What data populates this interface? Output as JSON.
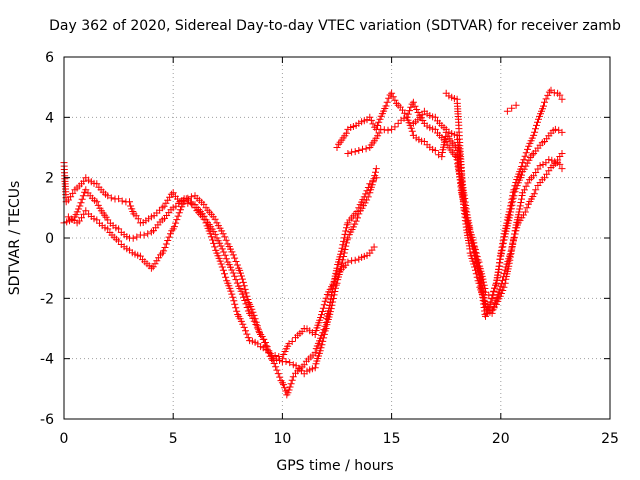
{
  "chart_data": {
    "type": "scatter",
    "title": "Day 362 of 2020, Sidereal Day-to-day VTEC variation (SDTVAR) for receiver zamb",
    "xlabel": "GPS time / hours",
    "ylabel": "SDTVAR / TECUs",
    "xlim": [
      0,
      25
    ],
    "ylim": [
      -6,
      6
    ],
    "xticks": [
      0,
      5,
      10,
      15,
      20,
      25
    ],
    "yticks": [
      -6,
      -4,
      -2,
      0,
      2,
      4,
      6
    ],
    "grid": true,
    "marker": "+",
    "color": "#ff0000",
    "series": [
      {
        "x": [
          0.0,
          0.1,
          0.5,
          1.0,
          1.5,
          2.0,
          2.5,
          3.0,
          3.2,
          3.5,
          4.0,
          4.5,
          5.0,
          5.3,
          5.6,
          6.0,
          6.5,
          7.0,
          7.5,
          8.0,
          8.5,
          9.0,
          9.5,
          10.0,
          10.3,
          10.6,
          11.0,
          11.5,
          12.0,
          12.5,
          13.0,
          13.5,
          14.0,
          14.2
        ],
        "y": [
          2.5,
          1.2,
          1.6,
          2.0,
          1.8,
          1.4,
          1.3,
          1.2,
          0.8,
          0.5,
          0.7,
          1.0,
          1.5,
          1.2,
          1.3,
          1.0,
          0.5,
          -0.5,
          -1.5,
          -2.6,
          -3.4,
          -3.6,
          -3.9,
          -4.0,
          -3.5,
          -3.3,
          -3.0,
          -3.2,
          -2.0,
          -1.2,
          -0.8,
          -0.7,
          -0.5,
          -0.3
        ]
      },
      {
        "x": [
          0.0,
          0.5,
          1.0,
          1.5,
          2.0,
          2.5,
          3.0,
          3.5,
          4.0,
          4.5,
          5.0,
          5.5,
          6.0,
          6.5,
          7.0,
          7.5,
          8.0,
          8.5,
          9.0,
          9.3,
          9.6,
          10.0,
          10.5,
          11.0,
          11.5,
          12.0,
          12.5,
          13.0,
          13.5,
          14.0,
          14.3
        ],
        "y": [
          0.5,
          0.7,
          1.6,
          1.2,
          0.6,
          0.3,
          0.0,
          0.1,
          0.2,
          0.6,
          1.0,
          1.3,
          1.4,
          1.0,
          0.5,
          -0.2,
          -1.0,
          -2.2,
          -3.2,
          -3.6,
          -4.0,
          -4.1,
          -4.2,
          -4.5,
          -4.3,
          -3.0,
          -1.5,
          0.0,
          0.8,
          1.5,
          2.3
        ]
      },
      {
        "x": [
          0.2,
          0.6,
          1.0,
          1.5,
          2.0,
          2.5,
          3.0,
          3.5,
          4.0,
          4.5,
          5.0,
          5.5,
          6.0,
          6.5,
          7.0,
          7.5,
          8.0,
          8.5,
          9.0,
          9.5,
          10.0,
          10.2,
          10.5,
          11.0,
          11.5,
          12.0,
          12.5,
          13.0,
          13.5,
          14.0,
          14.3
        ],
        "y": [
          0.7,
          0.5,
          0.9,
          0.6,
          0.3,
          -0.1,
          -0.4,
          -0.6,
          -1.0,
          -0.5,
          0.3,
          1.2,
          1.1,
          0.6,
          0.0,
          -0.8,
          -1.6,
          -2.5,
          -3.2,
          -4.0,
          -4.8,
          -5.2,
          -4.6,
          -4.2,
          -3.8,
          -2.8,
          -1.0,
          0.5,
          1.0,
          1.8,
          2.0
        ]
      },
      {
        "x": [
          12.5,
          13.0,
          13.5,
          14.0,
          14.3,
          14.8,
          15.0,
          15.3,
          15.7,
          16.0,
          16.5,
          17.0,
          17.5,
          18.0,
          18.3,
          18.6,
          19.0,
          19.3,
          19.5,
          19.8,
          20.0,
          20.3,
          20.6,
          21.0,
          21.5,
          22.0,
          22.3,
          22.6,
          22.8
        ],
        "y": [
          3.0,
          3.6,
          3.8,
          4.0,
          3.6,
          4.5,
          4.8,
          4.4,
          4.0,
          4.5,
          3.8,
          3.6,
          3.2,
          2.6,
          1.2,
          0.0,
          -1.2,
          -2.6,
          -2.2,
          -1.5,
          -0.5,
          0.6,
          1.6,
          2.5,
          3.4,
          4.5,
          4.9,
          4.8,
          4.6
        ]
      },
      {
        "x": [
          13.0,
          13.5,
          14.0,
          14.5,
          15.0,
          15.3,
          15.7,
          16.0,
          16.5,
          17.0,
          17.3,
          17.5,
          18.0,
          18.2,
          18.5,
          18.8,
          19.0,
          19.3,
          19.6,
          19.8,
          20.0,
          20.3,
          20.6,
          21.0,
          21.5,
          22.0,
          22.5,
          22.8
        ],
        "y": [
          2.8,
          2.9,
          3.0,
          3.6,
          3.6,
          3.8,
          4.0,
          3.4,
          3.2,
          2.9,
          2.7,
          3.5,
          2.9,
          1.5,
          0.5,
          -0.3,
          -0.8,
          -1.8,
          -2.0,
          -1.5,
          -0.6,
          0.4,
          1.4,
          2.2,
          2.8,
          3.2,
          3.6,
          3.5
        ]
      },
      {
        "x": [
          16.0,
          16.5,
          17.0,
          17.5,
          18.0,
          18.3,
          18.6,
          19.0,
          19.3,
          19.6,
          20.0,
          20.4,
          20.8,
          21.2,
          21.6,
          22.0,
          22.4,
          22.8
        ],
        "y": [
          3.8,
          4.2,
          4.0,
          3.6,
          3.4,
          1.5,
          0.2,
          -1.0,
          -2.2,
          -2.5,
          -1.6,
          -0.6,
          0.5,
          1.0,
          1.6,
          2.0,
          2.4,
          2.8
        ]
      },
      {
        "x": [
          17.5,
          18.0,
          18.3,
          18.6,
          19.0,
          19.4,
          19.8,
          20.2,
          20.6,
          21.0,
          21.4,
          21.8,
          22.2,
          22.6,
          22.8
        ],
        "y": [
          4.8,
          4.6,
          1.0,
          -0.5,
          -1.5,
          -2.5,
          -2.2,
          -1.5,
          0.0,
          1.5,
          2.0,
          2.4,
          2.6,
          2.5,
          2.3
        ]
      },
      {
        "x": [
          20.3,
          20.5,
          20.7
        ],
        "y": [
          4.2,
          4.3,
          4.4
        ]
      }
    ]
  }
}
